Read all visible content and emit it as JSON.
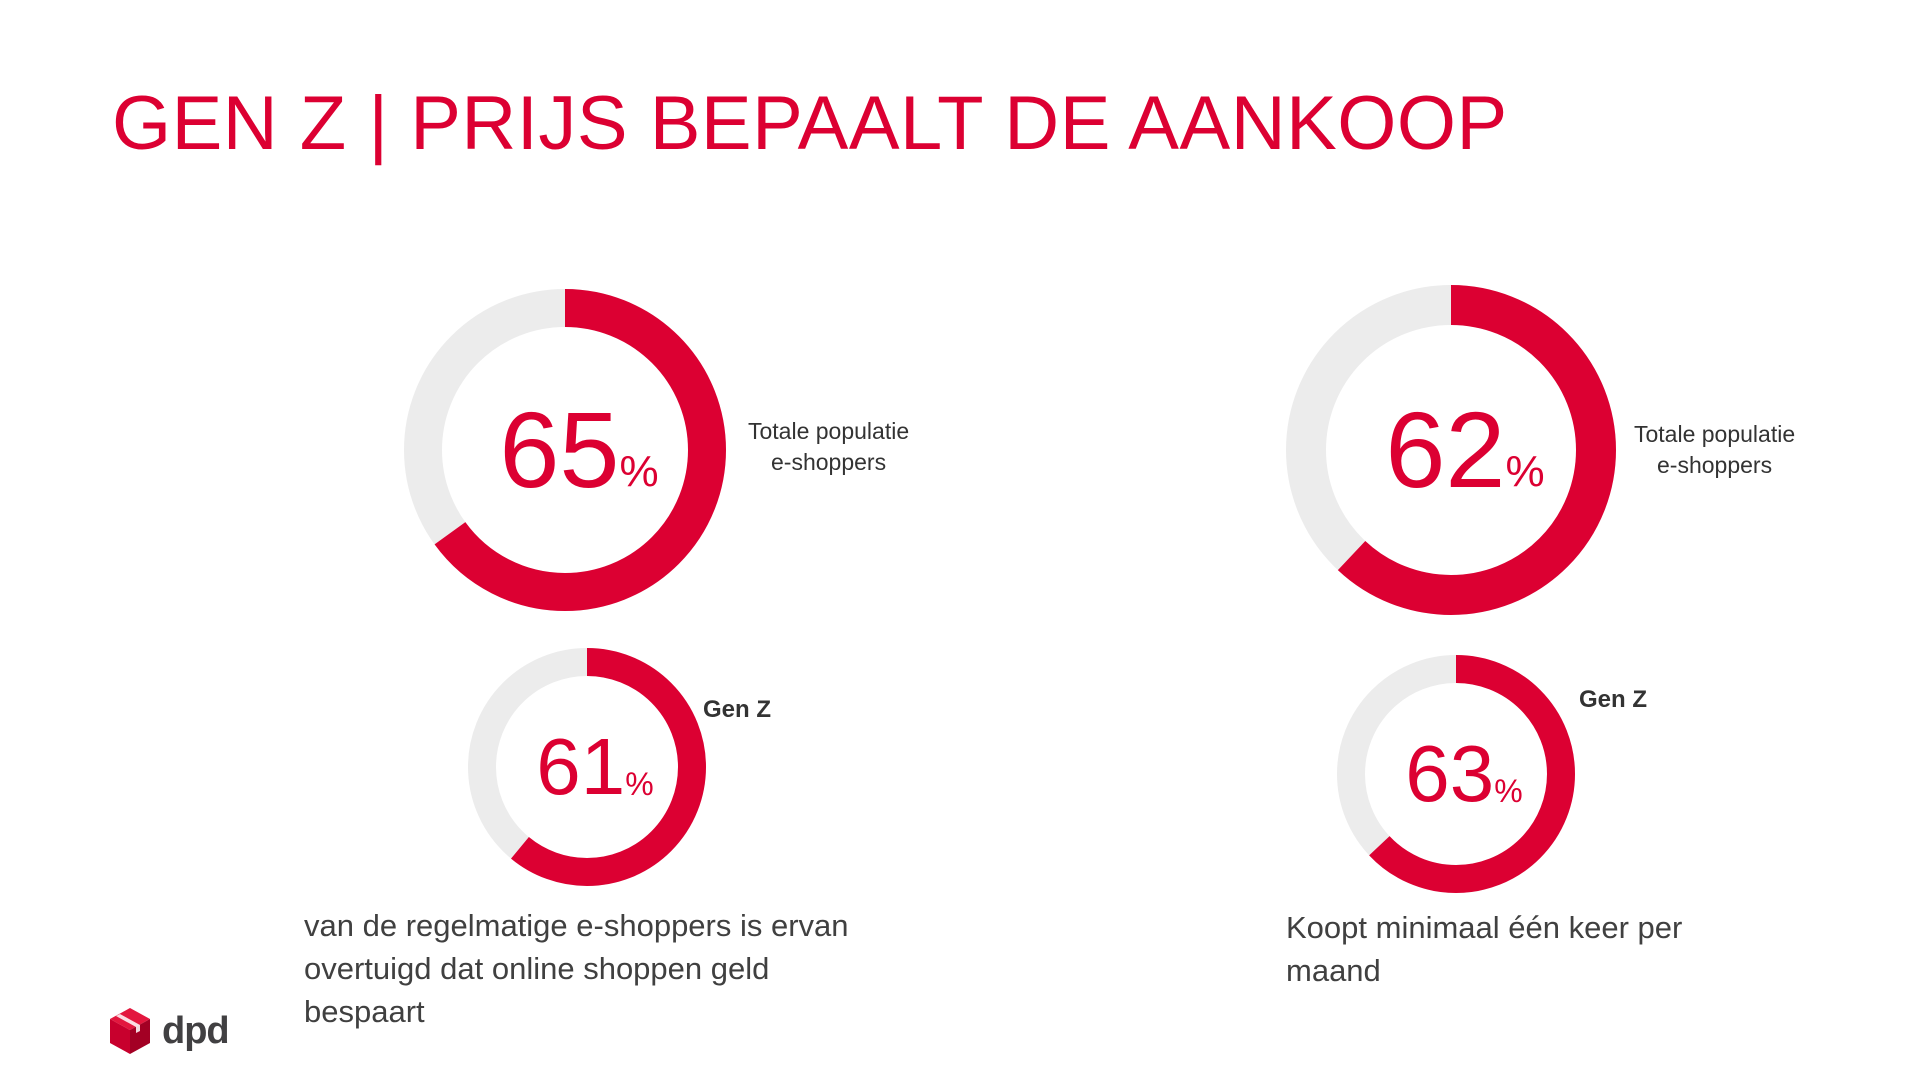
{
  "title": "GEN Z | PRIJS BEPAALT DE AANKOOP",
  "colors": {
    "accent": "#dc0032",
    "track": "#ececec"
  },
  "chart_data": [
    {
      "type": "pie",
      "group": "left",
      "charts": [
        {
          "series": "Totale populatie e-shoppers",
          "value": 65,
          "unit": "%"
        },
        {
          "series": "Gen Z",
          "value": 61,
          "unit": "%"
        }
      ],
      "caption": "van de regelmatige e-shoppers is ervan overtuigd dat online shoppen geld bespaart"
    },
    {
      "type": "pie",
      "group": "right",
      "charts": [
        {
          "series": "Totale populatie e-shoppers",
          "value": 62,
          "unit": "%"
        },
        {
          "series": "Gen Z",
          "value": 63,
          "unit": "%"
        }
      ],
      "caption": "Koopt minimaal één keer per maand"
    }
  ],
  "labels": {
    "total_line1": "Totale populatie",
    "total_line2": "e-shoppers",
    "genz": "Gen Z",
    "pct": "%"
  },
  "captions": {
    "left_line1": "van de regelmatige e-shoppers is ervan",
    "left_line2": "overtuigd dat online shoppen geld",
    "left_line3": "bespaart",
    "right_line1": "Koopt minimaal één keer per",
    "right_line2": "maand"
  },
  "logo": {
    "text": "dpd",
    "icon": "dpd-cube-icon"
  }
}
